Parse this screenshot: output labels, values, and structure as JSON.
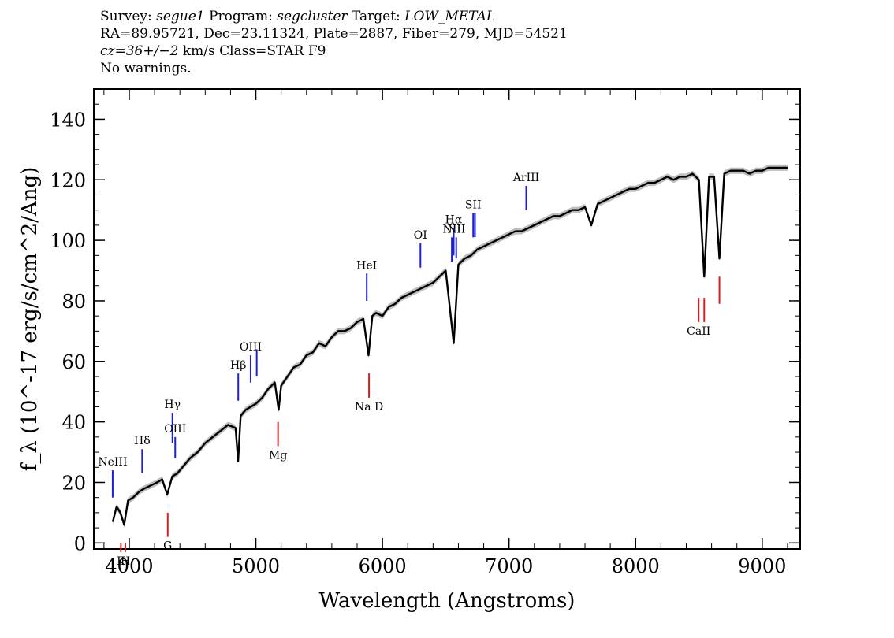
{
  "header": {
    "line1": {
      "survey_label": "Survey: ",
      "survey": "segue1",
      "program_label": " Program: ",
      "program": "segcluster",
      "target_label": " Target: ",
      "target": "LOW_METAL"
    },
    "line2": "RA=89.95721, Dec=23.11324, Plate=2887, Fiber=279, MJD=54521",
    "line3": {
      "cz": "cz=36+/−2",
      "rest": " km/s Class=STAR F9"
    },
    "line4": "No warnings."
  },
  "chart_data": {
    "type": "line",
    "xlabel": "Wavelength (Angstroms)",
    "ylabel": "f_λ (10^-17 erg/s/cm^2/Ang)",
    "xlim": [
      3720,
      9300
    ],
    "ylim": [
      -2,
      150
    ],
    "xticks": [
      4000,
      5000,
      6000,
      7000,
      8000,
      9000
    ],
    "yticks": [
      0,
      20,
      40,
      60,
      80,
      100,
      120,
      140
    ],
    "series": [
      {
        "x": [
          3870,
          3900,
          3930,
          3960,
          3990,
          4030,
          4080,
          4120,
          4170,
          4220,
          4260,
          4300,
          4340,
          4380,
          4420,
          4480,
          4540,
          4600,
          4660,
          4720,
          4780,
          4840,
          4860,
          4880,
          4920,
          4960,
          5000,
          5050,
          5100,
          5150,
          5180,
          5200,
          5250,
          5300,
          5350,
          5400,
          5450,
          5500,
          5550,
          5600,
          5650,
          5700,
          5750,
          5800,
          5850,
          5890,
          5920,
          5950,
          6000,
          6050,
          6100,
          6150,
          6200,
          6250,
          6300,
          6350,
          6400,
          6450,
          6500,
          6563,
          6600,
          6650,
          6700,
          6750,
          6800,
          6850,
          6900,
          6950,
          7000,
          7050,
          7100,
          7150,
          7200,
          7250,
          7300,
          7350,
          7400,
          7450,
          7500,
          7550,
          7600,
          7650,
          7700,
          7750,
          7800,
          7850,
          7900,
          7950,
          8000,
          8050,
          8100,
          8150,
          8200,
          8250,
          8300,
          8350,
          8400,
          8450,
          8500,
          8542,
          8580,
          8620,
          8662,
          8700,
          8750,
          8800,
          8850,
          8900,
          8950,
          9000,
          9050,
          9100,
          9150,
          9200
        ],
        "y": [
          7,
          12,
          10,
          6,
          14,
          15,
          17,
          18,
          19,
          20,
          21,
          16,
          22,
          23,
          25,
          28,
          30,
          33,
          35,
          37,
          39,
          38,
          27,
          42,
          44,
          45,
          46,
          48,
          51,
          53,
          44,
          52,
          55,
          58,
          59,
          62,
          63,
          66,
          65,
          68,
          70,
          70,
          71,
          73,
          74,
          62,
          75,
          76,
          75,
          78,
          79,
          81,
          82,
          83,
          84,
          85,
          86,
          88,
          90,
          66,
          92,
          94,
          95,
          97,
          98,
          99,
          100,
          101,
          102,
          103,
          103,
          104,
          105,
          106,
          107,
          108,
          108,
          109,
          110,
          110,
          111,
          105,
          112,
          113,
          114,
          115,
          116,
          117,
          117,
          118,
          119,
          119,
          120,
          121,
          120,
          121,
          121,
          122,
          120,
          88,
          121,
          121,
          94,
          122,
          123,
          123,
          123,
          122,
          123,
          123,
          124,
          124,
          124,
          124
        ]
      }
    ],
    "emission_lines": [
      {
        "label": "NeIII",
        "x": 3869,
        "y1": 15,
        "y2": 24
      },
      {
        "label": "Hδ",
        "x": 4102,
        "y1": 23,
        "y2": 31
      },
      {
        "label": "Hγ",
        "x": 4341,
        "y1": 33,
        "y2": 43
      },
      {
        "label": "OIII",
        "x": 4363,
        "y1": 28,
        "y2": 35
      },
      {
        "label": "Hβ",
        "x": 4861,
        "y1": 47,
        "y2": 56
      },
      {
        "label": "OIII",
        "x": 4959,
        "y1": 53,
        "y2": 62
      },
      {
        "label": "",
        "x": 5007,
        "y1": 55,
        "y2": 64
      },
      {
        "label": "HeI",
        "x": 5876,
        "y1": 80,
        "y2": 89
      },
      {
        "label": "OI",
        "x": 6300,
        "y1": 91,
        "y2": 99
      },
      {
        "label": "NII",
        "x": 6548,
        "y1": 93,
        "y2": 101
      },
      {
        "label": "Hα",
        "x": 6563,
        "y1": 95,
        "y2": 104
      },
      {
        "label": "NII",
        "x": 6583,
        "y1": 94,
        "y2": 101
      },
      {
        "label": "SII",
        "x": 6717,
        "y1": 101,
        "y2": 109
      },
      {
        "label": "",
        "x": 6731,
        "y1": 101,
        "y2": 109
      },
      {
        "label": "ArIII",
        "x": 7136,
        "y1": 110,
        "y2": 118
      }
    ],
    "absorption_lines": [
      {
        "label": "K",
        "x": 3934,
        "y1": -3,
        "y2": 0
      },
      {
        "label": "H",
        "x": 3969,
        "y1": -3,
        "y2": 0
      },
      {
        "label": "G",
        "x": 4304,
        "y1": 2,
        "y2": 10
      },
      {
        "label": "Mg",
        "x": 5175,
        "y1": 32,
        "y2": 40
      },
      {
        "label": "Na D",
        "x": 5894,
        "y1": 48,
        "y2": 56
      },
      {
        "label": "CaII",
        "x": 8498,
        "y1": 73,
        "y2": 81
      },
      {
        "label": "",
        "x": 8542,
        "y1": 73,
        "y2": 81
      },
      {
        "label": "",
        "x": 8662,
        "y1": 79,
        "y2": 88
      }
    ],
    "colors": {
      "spectrum": "#000000",
      "error_band": "#bdbdbd",
      "emission": "#1f1fd6",
      "absorption": "#d61f1f"
    }
  }
}
